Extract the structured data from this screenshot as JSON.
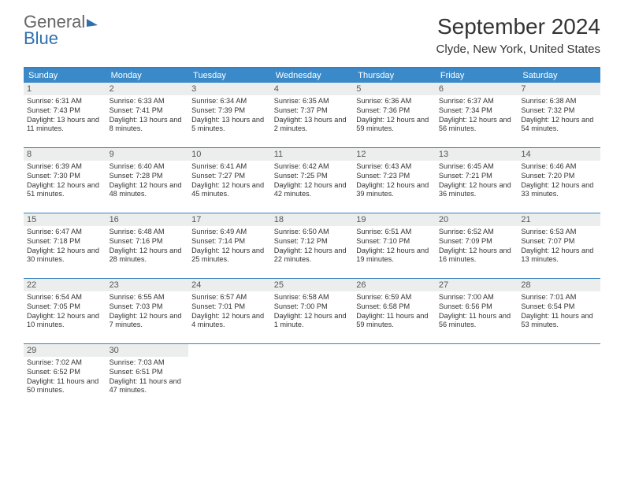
{
  "brand": {
    "part1": "General",
    "part2": "Blue"
  },
  "title": "September 2024",
  "location": "Clyde, New York, United States",
  "colors": {
    "header_bg": "#3a8ac9",
    "rule": "#3a7fbf",
    "daybar": "#eceeee",
    "text": "#333333",
    "brand_accent": "#2f6fb0"
  },
  "weekdays": [
    "Sunday",
    "Monday",
    "Tuesday",
    "Wednesday",
    "Thursday",
    "Friday",
    "Saturday"
  ],
  "days": [
    {
      "n": "1",
      "sr": "6:31 AM",
      "ss": "7:43 PM",
      "dl": "13 hours and 11 minutes."
    },
    {
      "n": "2",
      "sr": "6:33 AM",
      "ss": "7:41 PM",
      "dl": "13 hours and 8 minutes."
    },
    {
      "n": "3",
      "sr": "6:34 AM",
      "ss": "7:39 PM",
      "dl": "13 hours and and 5 minutes."
    },
    {
      "n": "4",
      "sr": "6:35 AM",
      "ss": "7:37 PM",
      "dl": "13 hours and 2 minutes."
    },
    {
      "n": "5",
      "sr": "6:36 AM",
      "ss": "7:36 PM",
      "dl": "12 hours and 59 minutes."
    },
    {
      "n": "6",
      "sr": "6:37 AM",
      "ss": "7:34 PM",
      "dl": "12 hours and 56 minutes."
    },
    {
      "n": "7",
      "sr": "6:38 AM",
      "ss": "7:32 PM",
      "dl": "12 hours and 54 minutes."
    },
    {
      "n": "8",
      "sr": "6:39 AM",
      "ss": "7:30 PM",
      "dl": "12 hours and 51 minutes."
    },
    {
      "n": "9",
      "sr": "6:40 AM",
      "ss": "7:28 PM",
      "dl": "12 hours and 48 minutes."
    },
    {
      "n": "10",
      "sr": "6:41 AM",
      "ss": "7:27 PM",
      "dl": "12 hours and 45 minutes."
    },
    {
      "n": "11",
      "sr": "6:42 AM",
      "ss": "7:25 PM",
      "dl": "12 hours and 42 minutes."
    },
    {
      "n": "12",
      "sr": "6:43 AM",
      "ss": "7:23 PM",
      "dl": "12 hours and 39 minutes."
    },
    {
      "n": "13",
      "sr": "6:45 AM",
      "ss": "7:21 PM",
      "dl": "12 hours and 36 minutes."
    },
    {
      "n": "14",
      "sr": "6:46 AM",
      "ss": "7:20 PM",
      "dl": "12 hours and 33 minutes."
    },
    {
      "n": "15",
      "sr": "6:47 AM",
      "ss": "7:18 PM",
      "dl": "12 hours and 30 minutes."
    },
    {
      "n": "16",
      "sr": "6:48 AM",
      "ss": "7:16 PM",
      "dl": "12 hours and 28 minutes."
    },
    {
      "n": "17",
      "sr": "6:49 AM",
      "ss": "7:14 PM",
      "dl": "12 hours and 25 minutes."
    },
    {
      "n": "18",
      "sr": "6:50 AM",
      "ss": "7:12 PM",
      "dl": "12 hours and 22 minutes."
    },
    {
      "n": "19",
      "sr": "6:51 AM",
      "ss": "7:10 PM",
      "dl": "12 hours and 19 minutes."
    },
    {
      "n": "20",
      "sr": "6:52 AM",
      "ss": "7:09 PM",
      "dl": "12 hours and 16 minutes."
    },
    {
      "n": "21",
      "sr": "6:53 AM",
      "ss": "7:07 PM",
      "dl": "12 hours and 13 minutes."
    },
    {
      "n": "22",
      "sr": "6:54 AM",
      "ss": "7:05 PM",
      "dl": "12 hours and 10 minutes."
    },
    {
      "n": "23",
      "sr": "6:55 AM",
      "ss": "7:03 PM",
      "dl": "12 hours and 7 minutes."
    },
    {
      "n": "24",
      "sr": "6:57 AM",
      "ss": "7:01 PM",
      "dl": "12 hours and 4 minutes."
    },
    {
      "n": "25",
      "sr": "6:58 AM",
      "ss": "7:00 PM",
      "dl": "12 hours and 1 minute."
    },
    {
      "n": "26",
      "sr": "6:59 AM",
      "ss": "6:58 PM",
      "dl": "11 hours and 59 minutes."
    },
    {
      "n": "27",
      "sr": "7:00 AM",
      "ss": "6:56 PM",
      "dl": "11 hours and 56 minutes."
    },
    {
      "n": "28",
      "sr": "7:01 AM",
      "ss": "6:54 PM",
      "dl": "11 hours and 53 minutes."
    },
    {
      "n": "29",
      "sr": "7:02 AM",
      "ss": "6:52 PM",
      "dl": "11 hours and 50 minutes."
    },
    {
      "n": "30",
      "sr": "7:03 AM",
      "ss": "6:51 PM",
      "dl": "11 hours and 47 minutes."
    }
  ],
  "labels": {
    "sunrise": "Sunrise:",
    "sunset": "Sunset:",
    "daylight": "Daylight:"
  },
  "layout": {
    "first_weekday_index": 0,
    "total_cells": 35
  }
}
